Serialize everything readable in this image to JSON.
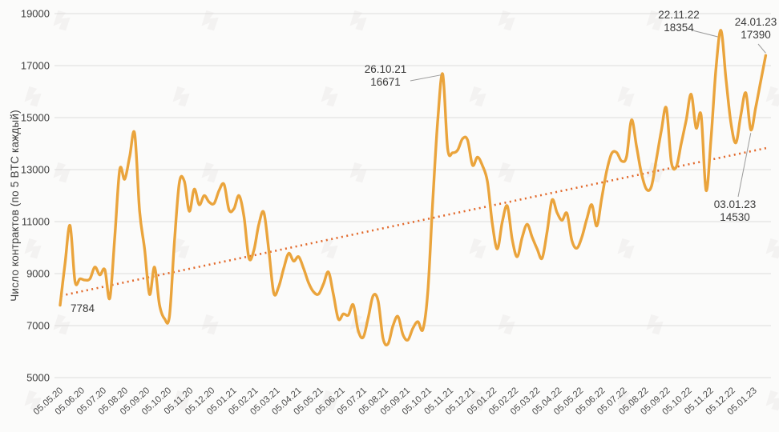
{
  "chart_data": {
    "type": "line",
    "title": "",
    "xlabel": "",
    "ylabel": "Число контрактов (по 5 BTC каждый)",
    "ylim": [
      5000,
      19000
    ],
    "y_ticks": [
      19000,
      17000,
      15000,
      13000,
      11000,
      9000,
      7000,
      5000
    ],
    "grid": true,
    "legend": false,
    "x_tick_labels": [
      "05.05.20",
      "05.06.20",
      "05.07.20",
      "05.08.20",
      "05.09.20",
      "05.10.20",
      "05.11.20",
      "05.12.20",
      "05.01.21",
      "05.02.21",
      "05.03.21",
      "05.04.21",
      "05.05.21",
      "05.06.21",
      "05.07.21",
      "05.08.21",
      "05.09.21",
      "05.10.21",
      "05.11.21",
      "05.12.21",
      "05.01.22",
      "05.02.22",
      "05.03.22",
      "05.04.22",
      "05.05.22",
      "05.06.22",
      "05.07.22",
      "05.08.22",
      "05.09.22",
      "05.10.22",
      "05.11.22",
      "05.12.22",
      "05.01.23"
    ],
    "series": [
      {
        "name": "contracts",
        "color": "#EAA43C",
        "cadence": "weekly from 05.05.20 to 24.01.23",
        "values": [
          7784,
          9400,
          10850,
          8700,
          8800,
          8750,
          8800,
          9250,
          8950,
          9150,
          8050,
          10400,
          13000,
          12630,
          13500,
          14390,
          11400,
          9950,
          8200,
          9250,
          7800,
          7270,
          7350,
          10200,
          12500,
          12550,
          11400,
          12250,
          11650,
          12000,
          11750,
          11700,
          12200,
          12430,
          11450,
          11500,
          12000,
          11200,
          9600,
          9900,
          10900,
          11350,
          9900,
          8250,
          8500,
          9200,
          9780,
          9480,
          9650,
          9200,
          8650,
          8300,
          8210,
          8600,
          9060,
          8200,
          7250,
          7450,
          7400,
          7800,
          6800,
          6550,
          7300,
          8150,
          7950,
          6500,
          6300,
          7000,
          7350,
          6650,
          6450,
          6900,
          7150,
          6850,
          8300,
          11800,
          14900,
          16671,
          13800,
          13650,
          13750,
          14190,
          14140,
          13170,
          13480,
          13150,
          12540,
          10900,
          9950,
          11000,
          11600,
          10300,
          9650,
          10400,
          10900,
          10400,
          9950,
          9590,
          10600,
          11830,
          11350,
          11050,
          11320,
          10270,
          9980,
          10400,
          11100,
          11650,
          10830,
          11900,
          12950,
          13620,
          13660,
          13330,
          13500,
          14910,
          13900,
          12850,
          12250,
          12350,
          13400,
          14500,
          15370,
          13300,
          13100,
          14000,
          14900,
          15900,
          14600,
          15100,
          12200,
          14200,
          16900,
          18354,
          16500,
          14800,
          14030,
          15100,
          15950,
          14530,
          15400,
          16400,
          17390
        ]
      }
    ],
    "trendline": {
      "style": "dotted",
      "color": "#E2692B",
      "start_value": 8150,
      "end_value": 13840
    }
  },
  "annotations": [
    {
      "lines": [
        "7784"
      ],
      "series_index": 0,
      "value": 7784
    },
    {
      "lines": [
        "26.10.21",
        "16671"
      ],
      "series_index": 77,
      "value": 16671
    },
    {
      "lines": [
        "22.11.22",
        "18354"
      ],
      "series_index": 133,
      "value": 18354
    },
    {
      "lines": [
        "24.01.23",
        "17390"
      ],
      "series_index": 142,
      "value": 17390
    },
    {
      "lines": [
        "03.01.23",
        "14530"
      ],
      "series_index": 139,
      "value": 14530
    }
  ],
  "watermark": {
    "name": "forklog-logo",
    "color": "#8a857e"
  },
  "colors": {
    "background": "#fbfbfa",
    "grid": "#dcdcdc",
    "tick_text": "#4a4a4a",
    "annotation_text": "#3a3a3a",
    "leader_line": "#9a9a9a"
  }
}
